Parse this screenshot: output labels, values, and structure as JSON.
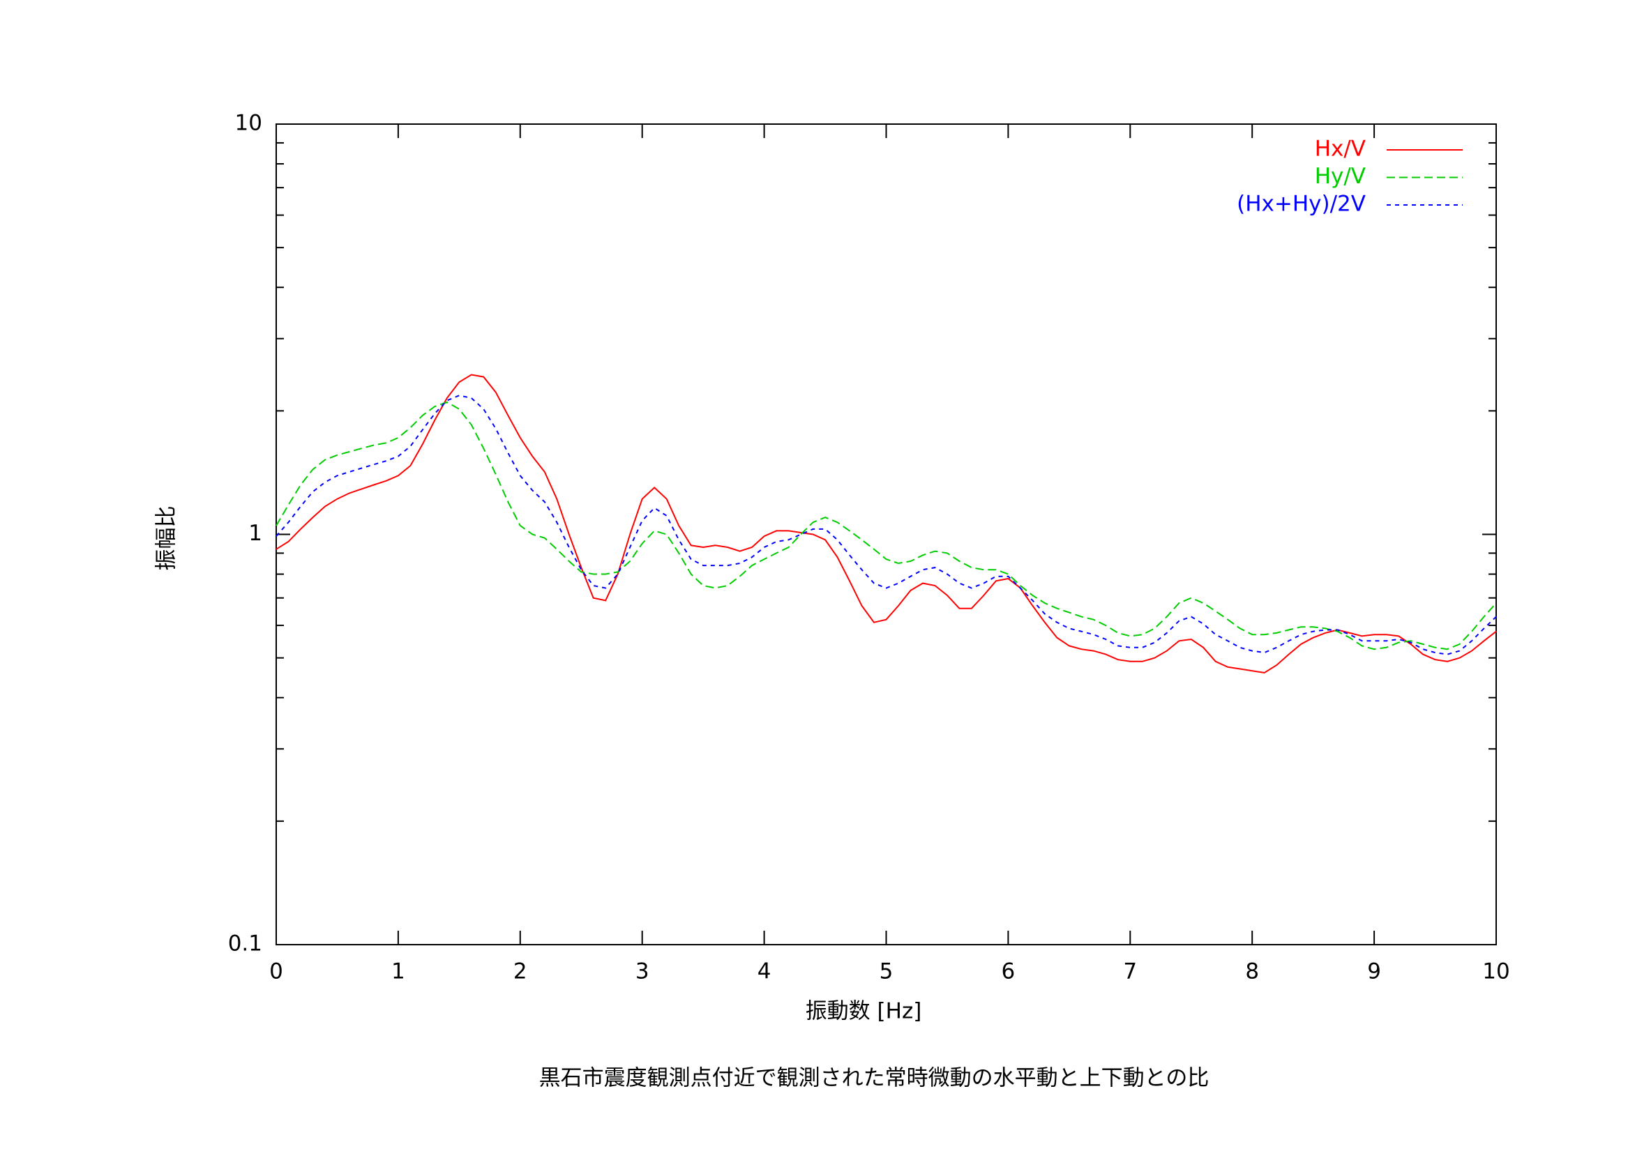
{
  "chart_data": {
    "type": "line",
    "caption": "黒石市震度観測点付近で観測された常時微動の水平動と上下動との比",
    "x_label": "振動数 [Hz]",
    "y_label": "振幅比",
    "xlim": [
      0,
      10
    ],
    "xticks": [
      0,
      1,
      2,
      3,
      4,
      5,
      6,
      7,
      8,
      9,
      10
    ],
    "ylim": [
      0.1,
      10
    ],
    "yticks": [
      0.1,
      1,
      10
    ],
    "yminorticks": [
      0.2,
      0.3,
      0.4,
      0.5,
      0.6,
      0.7,
      0.8,
      0.9,
      2,
      3,
      4,
      5,
      6,
      7,
      8,
      9
    ],
    "log_y": true,
    "legend": "upper right",
    "x": [
      0,
      0.1,
      0.2,
      0.3,
      0.4,
      0.5,
      0.6,
      0.7,
      0.8,
      0.9,
      1,
      1.1,
      1.2,
      1.3,
      1.4,
      1.5,
      1.6,
      1.7,
      1.8,
      1.9,
      2,
      2.1,
      2.2,
      2.3,
      2.4,
      2.5,
      2.6,
      2.7,
      2.8,
      2.9,
      3,
      3.1,
      3.2,
      3.3,
      3.4,
      3.5,
      3.6,
      3.7,
      3.8,
      3.9,
      4,
      4.1,
      4.2,
      4.3,
      4.4,
      4.5,
      4.6,
      4.7,
      4.8,
      4.9,
      5,
      5.1,
      5.2,
      5.3,
      5.4,
      5.5,
      5.6,
      5.7,
      5.8,
      5.9,
      6,
      6.1,
      6.2,
      6.3,
      6.4,
      6.5,
      6.6,
      6.7,
      6.8,
      6.9,
      7,
      7.1,
      7.2,
      7.3,
      7.4,
      7.5,
      7.6,
      7.7,
      7.8,
      7.9,
      8,
      8.1,
      8.2,
      8.3,
      8.4,
      8.5,
      8.6,
      8.7,
      8.8,
      8.9,
      9,
      9.1,
      9.2,
      9.3,
      9.4,
      9.5,
      9.6,
      9.7,
      9.8,
      9.9,
      10
    ],
    "series": [
      {
        "name": "Hx/V",
        "color": "#ff0000",
        "values": [
          0.92,
          0.96,
          1.03,
          1.1,
          1.17,
          1.22,
          1.26,
          1.29,
          1.32,
          1.35,
          1.39,
          1.47,
          1.66,
          1.9,
          2.15,
          2.35,
          2.45,
          2.42,
          2.22,
          1.95,
          1.72,
          1.55,
          1.42,
          1.22,
          1.0,
          0.83,
          0.7,
          0.69,
          0.8,
          1.0,
          1.22,
          1.3,
          1.22,
          1.05,
          0.94,
          0.93,
          0.94,
          0.93,
          0.91,
          0.93,
          0.99,
          1.02,
          1.02,
          1.01,
          1.0,
          0.97,
          0.88,
          0.77,
          0.67,
          0.61,
          0.62,
          0.67,
          0.73,
          0.76,
          0.75,
          0.71,
          0.66,
          0.66,
          0.71,
          0.77,
          0.78,
          0.74,
          0.67,
          0.61,
          0.56,
          0.535,
          0.525,
          0.52,
          0.51,
          0.495,
          0.49,
          0.49,
          0.5,
          0.52,
          0.55,
          0.555,
          0.53,
          0.49,
          0.475,
          0.47,
          0.465,
          0.46,
          0.48,
          0.51,
          0.54,
          0.56,
          0.575,
          0.585,
          0.575,
          0.565,
          0.57,
          0.57,
          0.565,
          0.54,
          0.51,
          0.495,
          0.49,
          0.5,
          0.52,
          0.55,
          0.58
        ]
      },
      {
        "name": "Hy/V",
        "color": "#00cc00",
        "values": [
          1.05,
          1.18,
          1.32,
          1.44,
          1.52,
          1.56,
          1.59,
          1.62,
          1.65,
          1.67,
          1.72,
          1.82,
          1.95,
          2.05,
          2.1,
          2.02,
          1.85,
          1.62,
          1.4,
          1.2,
          1.05,
          1.0,
          0.98,
          0.92,
          0.86,
          0.81,
          0.8,
          0.8,
          0.81,
          0.86,
          0.95,
          1.02,
          1.0,
          0.9,
          0.8,
          0.75,
          0.74,
          0.75,
          0.79,
          0.84,
          0.87,
          0.9,
          0.93,
          1.0,
          1.07,
          1.1,
          1.07,
          1.02,
          0.97,
          0.92,
          0.87,
          0.85,
          0.86,
          0.89,
          0.91,
          0.9,
          0.86,
          0.83,
          0.82,
          0.82,
          0.8,
          0.75,
          0.71,
          0.68,
          0.66,
          0.645,
          0.63,
          0.62,
          0.6,
          0.575,
          0.565,
          0.57,
          0.59,
          0.63,
          0.68,
          0.7,
          0.68,
          0.65,
          0.62,
          0.59,
          0.57,
          0.57,
          0.575,
          0.585,
          0.595,
          0.595,
          0.59,
          0.58,
          0.56,
          0.535,
          0.525,
          0.53,
          0.545,
          0.55,
          0.54,
          0.53,
          0.525,
          0.54,
          0.58,
          0.63,
          0.68
        ]
      },
      {
        "name": "(Hx+Hy)/2V",
        "color": "#0000ff",
        "values": [
          0.99,
          1.07,
          1.17,
          1.27,
          1.34,
          1.39,
          1.42,
          1.45,
          1.48,
          1.51,
          1.55,
          1.64,
          1.8,
          1.97,
          2.12,
          2.18,
          2.15,
          2.02,
          1.81,
          1.58,
          1.39,
          1.28,
          1.2,
          1.07,
          0.93,
          0.82,
          0.75,
          0.74,
          0.8,
          0.93,
          1.08,
          1.16,
          1.11,
          0.97,
          0.87,
          0.84,
          0.84,
          0.84,
          0.85,
          0.88,
          0.93,
          0.96,
          0.97,
          1.0,
          1.03,
          1.03,
          0.97,
          0.89,
          0.82,
          0.76,
          0.74,
          0.76,
          0.79,
          0.82,
          0.83,
          0.8,
          0.76,
          0.74,
          0.76,
          0.79,
          0.79,
          0.74,
          0.69,
          0.64,
          0.61,
          0.59,
          0.58,
          0.57,
          0.555,
          0.535,
          0.53,
          0.53,
          0.545,
          0.575,
          0.615,
          0.63,
          0.605,
          0.57,
          0.55,
          0.53,
          0.52,
          0.515,
          0.53,
          0.55,
          0.57,
          0.58,
          0.585,
          0.585,
          0.57,
          0.55,
          0.55,
          0.55,
          0.555,
          0.545,
          0.525,
          0.515,
          0.51,
          0.52,
          0.55,
          0.59,
          0.63
        ]
      }
    ]
  }
}
